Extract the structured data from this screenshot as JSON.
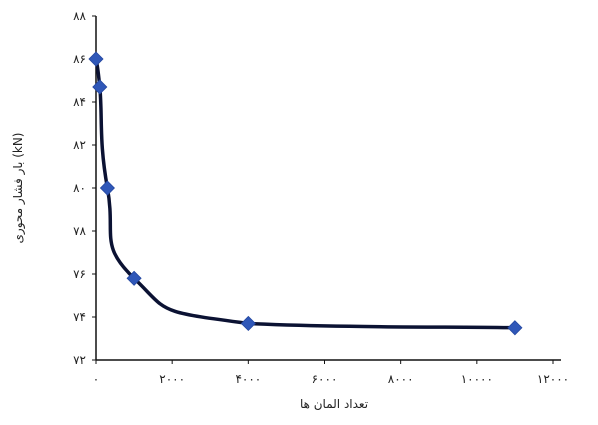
{
  "chart_data": {
    "type": "line",
    "xlabel": "تعداد المان ها",
    "ylabel": "بار فشار محوری (kN)",
    "xlim": [
      0,
      12000
    ],
    "ylim": [
      72,
      88
    ],
    "x_ticks": [
      0,
      2000,
      4000,
      6000,
      8000,
      10000,
      12000
    ],
    "y_ticks": [
      72,
      74,
      76,
      78,
      80,
      82,
      84,
      86,
      88
    ],
    "x_tick_labels": [
      "۰",
      "۲۰۰۰",
      "۴۰۰۰",
      "۶۰۰۰",
      "۸۰۰۰",
      "۱۰۰۰۰",
      "۱۲۰۰۰"
    ],
    "y_tick_labels": [
      "۷۲",
      "۷۴",
      "۷۶",
      "۷۸",
      "۸۰",
      "۸۲",
      "۸۴",
      "۸۶",
      "۸۸"
    ],
    "grid": false,
    "series": [
      {
        "x": [
          0,
          100,
          300,
          1000,
          4000,
          11000
        ],
        "y": [
          86.0,
          84.7,
          80.0,
          75.8,
          73.7,
          73.5
        ],
        "line_color": "#0b1233",
        "marker_color": "#2f57b8",
        "marker": "diamond"
      }
    ]
  }
}
